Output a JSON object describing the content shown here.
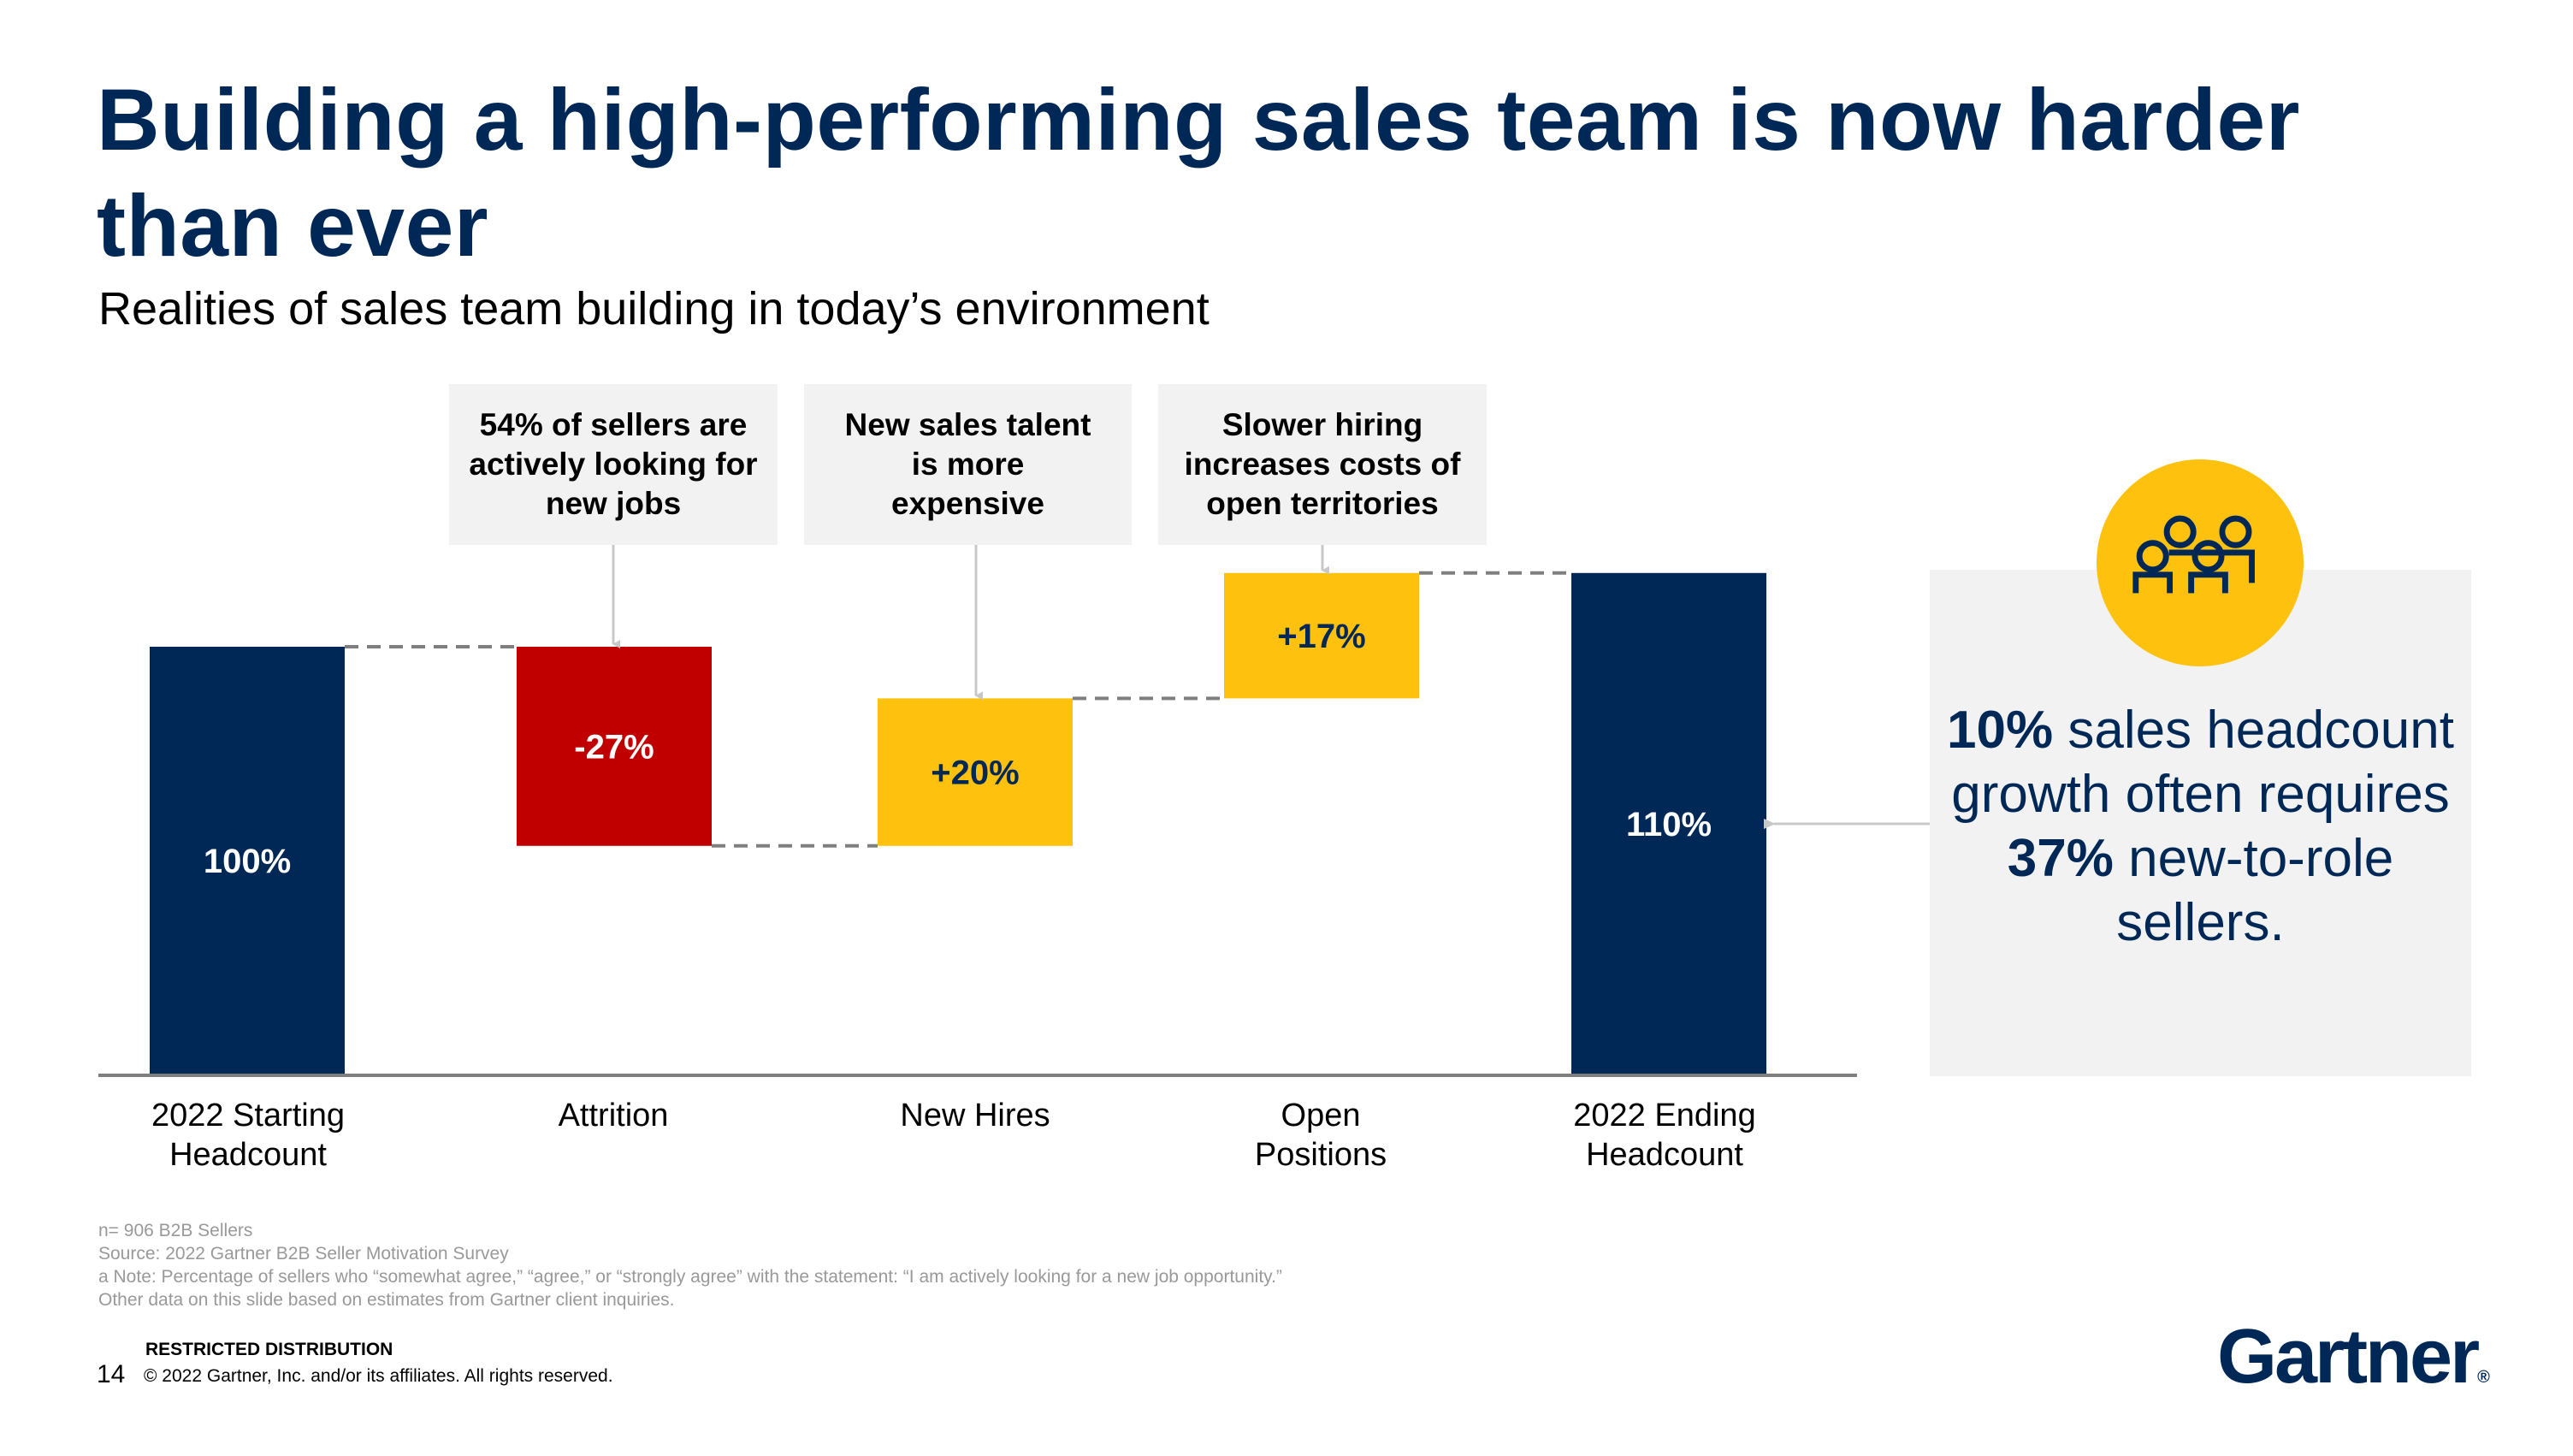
{
  "title": "Building a high-performing sales team is now harder than ever",
  "subtitle": "Realities of sales team building in today’s environment",
  "callouts": [
    {
      "text": "54% of sellers are actively looking for new jobs",
      "target": "Attrition"
    },
    {
      "text": "New sales talent is more expensive",
      "target": "New Hires"
    },
    {
      "text": "Slower hiring increases costs of open territories",
      "target": "Open Positions"
    }
  ],
  "chart_data": {
    "type": "bar",
    "subtype": "waterfall",
    "categories": [
      "2022 Starting Headcount",
      "Attrition",
      "New Hires",
      "Open Positions",
      "2022 Ending Headcount"
    ],
    "values": [
      100,
      -27,
      20,
      17,
      110
    ],
    "kinds": [
      "total",
      "delta",
      "delta",
      "delta",
      "total"
    ],
    "data_labels": [
      "100%",
      "-27%",
      "+20%",
      "+17%",
      "110%"
    ],
    "ylim": [
      42,
      115
    ],
    "grid": false,
    "colors": {
      "total": "#002856",
      "negative": "#c00000",
      "positive": "#fec10d"
    },
    "label_colors": {
      "total": "#ffffff",
      "negative": "#ffffff",
      "positive": "#002856"
    }
  },
  "panel": {
    "icon": "group-of-people-icon",
    "pct1": "10%",
    "text1": " sales headcount growth often requires ",
    "pct2": "37%",
    "text2": " new-to-role sellers."
  },
  "footnotes": [
    "n= 906 B2B Sellers",
    "Source: 2022 Gartner B2B Seller Motivation Survey",
    "a Note: Percentage of sellers who “somewhat agree,” “agree,” or “strongly agree” with the statement: “I am actively looking for a new job opportunity.”",
    "Other data on this slide based on estimates from Gartner client inquiries."
  ],
  "footer": {
    "restricted": "RESTRICTED DISTRIBUTION",
    "page_number": "14",
    "copyright": "© 2022 Gartner, Inc. and/or its affiliates. All rights reserved.",
    "logo": "Gartner"
  }
}
